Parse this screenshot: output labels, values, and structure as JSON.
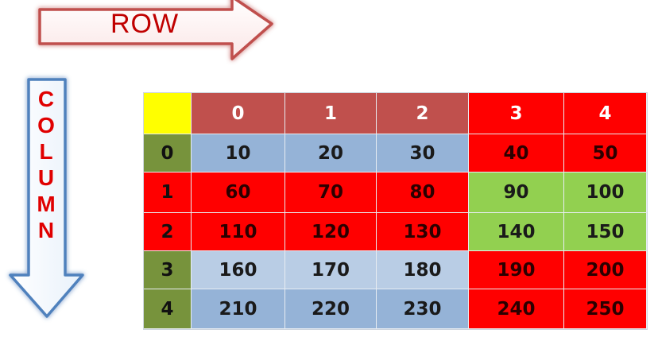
{
  "labels": {
    "row": "ROW",
    "column_letters": [
      "C",
      "O",
      "L",
      "U",
      "M",
      "N"
    ]
  },
  "icons": {
    "row_arrow": "right-arrow-icon",
    "column_arrow": "down-arrow-icon"
  },
  "colors": {
    "row_text": "#c00000",
    "column_text": "#e00000",
    "corner": "#ffff00",
    "header_dark_red": "#c0504d",
    "header_red": "#ff0000",
    "row_header_green": "#77933c",
    "cell_blue": "#95b3d7",
    "cell_light_blue": "#b9cde5",
    "cell_red": "#ff0000",
    "cell_green": "#92d050"
  },
  "table": {
    "column_headers": [
      "0",
      "1",
      "2",
      "3",
      "4"
    ],
    "row_headers": [
      "0",
      "1",
      "2",
      "3",
      "4"
    ],
    "rows": [
      [
        "10",
        "20",
        "30",
        "40",
        "50"
      ],
      [
        "60",
        "70",
        "80",
        "90",
        "100"
      ],
      [
        "110",
        "120",
        "130",
        "140",
        "150"
      ],
      [
        "160",
        "170",
        "180",
        "190",
        "200"
      ],
      [
        "210",
        "220",
        "230",
        "240",
        "250"
      ]
    ]
  }
}
